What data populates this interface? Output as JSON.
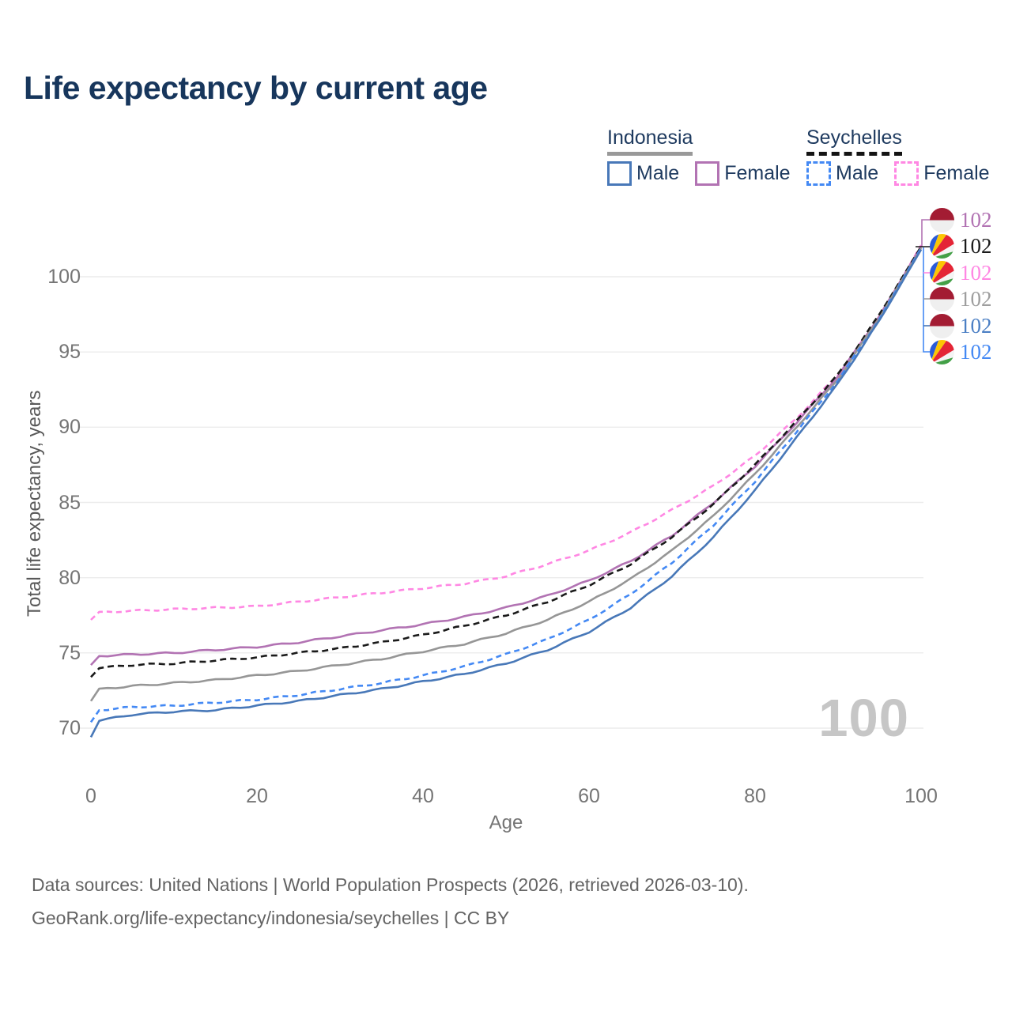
{
  "title": "Life expectancy by current age",
  "watermark": "100",
  "footer": {
    "line1": "Data sources: United Nations | World Population Prospects (2026, retrieved 2026-03-10).",
    "line2": "GeoRank.org/life-expectancy/indonesia/seychelles | CC BY"
  },
  "colors": {
    "title_text": "#17365c",
    "legend_text": "#1e3a5f",
    "tick_text": "#757575",
    "grid": "#ececec",
    "watermark": "#c6c6c6",
    "idn_male": "#4878b8",
    "idn_female": "#b273b3",
    "idn_total": "#969696",
    "syc_male": "#4489f4",
    "syc_female": "#ff87e3",
    "syc_total": "#1a1a1a"
  },
  "legend": {
    "groups": [
      {
        "country": "Indonesia",
        "underline_style": "solid",
        "underline_color": "#999999",
        "items": [
          {
            "label": "Male",
            "color": "#4878b8",
            "dash": false
          },
          {
            "label": "Female",
            "color": "#b273b3",
            "dash": false
          }
        ]
      },
      {
        "country": "Seychelles",
        "underline_style": "dashed",
        "underline_color": "#141414",
        "items": [
          {
            "label": "Male",
            "color": "#4489f4",
            "dash": true
          },
          {
            "label": "Female",
            "color": "#ff87e3",
            "dash": true
          }
        ]
      }
    ]
  },
  "end_labels": [
    {
      "series": "Indonesia Female",
      "flag": "indonesia",
      "value": "102",
      "color": "#b273b3"
    },
    {
      "series": "Seychelles",
      "flag": "seychelles",
      "value": "102",
      "color": "#1a1a1a"
    },
    {
      "series": "Seychelles Female",
      "flag": "seychelles",
      "value": "102",
      "color": "#ff87e3"
    },
    {
      "series": "Indonesia",
      "flag": "indonesia",
      "value": "102",
      "color": "#9e9e9e"
    },
    {
      "series": "Indonesia Male",
      "flag": "indonesia",
      "value": "102",
      "color": "#4b7fc4"
    },
    {
      "series": "Seychelles Male",
      "flag": "seychelles",
      "value": "102",
      "color": "#4489f4"
    }
  ],
  "chart_data": {
    "type": "line",
    "title": "Life expectancy by current age",
    "xlabel": "Age",
    "ylabel": "Total life expectancy, years",
    "xlim": [
      0,
      100
    ],
    "ylim": [
      69,
      103
    ],
    "x_ticks": [
      0,
      20,
      40,
      60,
      80,
      100
    ],
    "y_ticks": [
      70,
      75,
      80,
      85,
      90,
      95,
      100
    ],
    "grid": "horizontal",
    "legend_position": "top-right",
    "series": [
      {
        "name": "Seychelles Female",
        "country": "Seychelles",
        "sex": "female",
        "color": "#ff87e3",
        "dash": "7 5",
        "points": [
          [
            0,
            77.2
          ],
          [
            1,
            77.7
          ],
          [
            5,
            77.8
          ],
          [
            10,
            77.9
          ],
          [
            15,
            78.0
          ],
          [
            20,
            78.1
          ],
          [
            25,
            78.4
          ],
          [
            30,
            78.7
          ],
          [
            35,
            79.0
          ],
          [
            40,
            79.3
          ],
          [
            45,
            79.6
          ],
          [
            50,
            80.1
          ],
          [
            55,
            80.9
          ],
          [
            60,
            81.8
          ],
          [
            65,
            83.0
          ],
          [
            70,
            84.5
          ],
          [
            75,
            86.1
          ],
          [
            80,
            88.1
          ],
          [
            85,
            90.6
          ],
          [
            90,
            93.5
          ],
          [
            95,
            97.3
          ],
          [
            100,
            102.1
          ]
        ]
      },
      {
        "name": "Indonesia Female",
        "country": "Indonesia",
        "sex": "female",
        "color": "#b273b3",
        "dash": null,
        "points": [
          [
            0,
            74.2
          ],
          [
            1,
            74.8
          ],
          [
            5,
            74.9
          ],
          [
            10,
            75.0
          ],
          [
            15,
            75.2
          ],
          [
            20,
            75.4
          ],
          [
            25,
            75.7
          ],
          [
            30,
            76.1
          ],
          [
            35,
            76.5
          ],
          [
            40,
            76.9
          ],
          [
            45,
            77.4
          ],
          [
            50,
            78.0
          ],
          [
            55,
            78.8
          ],
          [
            60,
            79.8
          ],
          [
            65,
            81.1
          ],
          [
            70,
            82.8
          ],
          [
            75,
            85.0
          ],
          [
            80,
            87.4
          ],
          [
            85,
            90.3
          ],
          [
            90,
            93.4
          ],
          [
            95,
            97.4
          ],
          [
            100,
            102.0
          ]
        ]
      },
      {
        "name": "Seychelles",
        "country": "Seychelles",
        "sex": "total",
        "color": "#1a1a1a",
        "dash": "8 5",
        "points": [
          [
            0,
            73.4
          ],
          [
            1,
            74.0
          ],
          [
            5,
            74.2
          ],
          [
            10,
            74.3
          ],
          [
            15,
            74.5
          ],
          [
            20,
            74.7
          ],
          [
            25,
            75.0
          ],
          [
            30,
            75.3
          ],
          [
            35,
            75.7
          ],
          [
            40,
            76.2
          ],
          [
            45,
            76.8
          ],
          [
            50,
            77.5
          ],
          [
            55,
            78.4
          ],
          [
            60,
            79.5
          ],
          [
            65,
            80.9
          ],
          [
            70,
            82.7
          ],
          [
            75,
            84.9
          ],
          [
            80,
            87.5
          ],
          [
            85,
            90.4
          ],
          [
            90,
            93.5
          ],
          [
            95,
            97.5
          ],
          [
            100,
            102.0
          ]
        ]
      },
      {
        "name": "Indonesia",
        "country": "Indonesia",
        "sex": "total",
        "color": "#969696",
        "dash": null,
        "points": [
          [
            0,
            71.8
          ],
          [
            1,
            72.6
          ],
          [
            5,
            72.8
          ],
          [
            10,
            73.0
          ],
          [
            15,
            73.2
          ],
          [
            20,
            73.5
          ],
          [
            25,
            73.8
          ],
          [
            30,
            74.2
          ],
          [
            35,
            74.6
          ],
          [
            40,
            75.1
          ],
          [
            45,
            75.6
          ],
          [
            50,
            76.3
          ],
          [
            55,
            77.2
          ],
          [
            60,
            78.4
          ],
          [
            65,
            79.9
          ],
          [
            70,
            81.8
          ],
          [
            75,
            84.1
          ],
          [
            80,
            86.9
          ],
          [
            85,
            90.0
          ],
          [
            90,
            93.2
          ],
          [
            95,
            97.3
          ],
          [
            100,
            101.9
          ]
        ]
      },
      {
        "name": "Seychelles Male",
        "country": "Seychelles",
        "sex": "male",
        "color": "#4489f4",
        "dash": "7 5",
        "points": [
          [
            0,
            70.4
          ],
          [
            1,
            71.2
          ],
          [
            5,
            71.4
          ],
          [
            10,
            71.5
          ],
          [
            15,
            71.7
          ],
          [
            20,
            71.9
          ],
          [
            25,
            72.2
          ],
          [
            30,
            72.6
          ],
          [
            35,
            73.0
          ],
          [
            40,
            73.5
          ],
          [
            45,
            74.1
          ],
          [
            50,
            74.9
          ],
          [
            55,
            75.9
          ],
          [
            60,
            77.2
          ],
          [
            65,
            78.9
          ],
          [
            70,
            81.0
          ],
          [
            75,
            83.5
          ],
          [
            80,
            86.4
          ],
          [
            85,
            89.7
          ],
          [
            90,
            93.1
          ],
          [
            95,
            97.2
          ],
          [
            100,
            101.9
          ]
        ]
      },
      {
        "name": "Indonesia Male",
        "country": "Indonesia",
        "sex": "male",
        "color": "#4878b8",
        "dash": null,
        "points": [
          [
            0,
            69.4
          ],
          [
            1,
            70.5
          ],
          [
            5,
            70.9
          ],
          [
            10,
            71.1
          ],
          [
            15,
            71.2
          ],
          [
            20,
            71.5
          ],
          [
            25,
            71.8
          ],
          [
            30,
            72.2
          ],
          [
            35,
            72.6
          ],
          [
            40,
            73.1
          ],
          [
            45,
            73.6
          ],
          [
            50,
            74.3
          ],
          [
            55,
            75.2
          ],
          [
            60,
            76.4
          ],
          [
            65,
            78.0
          ],
          [
            70,
            80.1
          ],
          [
            75,
            82.7
          ],
          [
            80,
            85.8
          ],
          [
            85,
            89.3
          ],
          [
            90,
            92.9
          ],
          [
            95,
            97.1
          ],
          [
            100,
            101.8
          ]
        ]
      }
    ]
  }
}
